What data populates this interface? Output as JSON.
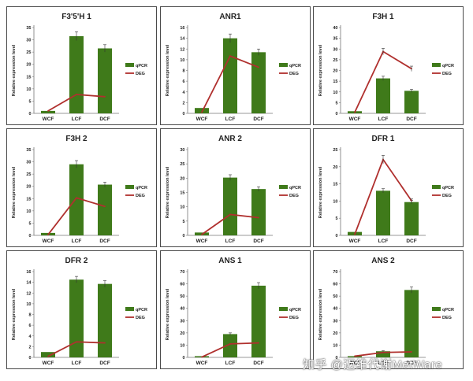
{
  "watermark": "知乎 @迈维代谢MetWare",
  "chart_data": [
    {
      "type": "bar",
      "title": "F3'5'H 1",
      "categories": [
        "WCF",
        "LCF",
        "DCF"
      ],
      "ylabel": "Relative expression level",
      "ylim": [
        0,
        35
      ],
      "yticks": [
        0,
        5,
        10,
        15,
        20,
        25,
        30,
        35
      ],
      "series": [
        {
          "name": "qPCR",
          "kind": "bar",
          "values": [
            1,
            31.5,
            26.5
          ],
          "errors": [
            0,
            1.8,
            1.5
          ]
        },
        {
          "name": "DEG",
          "kind": "line",
          "values": [
            1,
            7.7,
            6.8
          ]
        }
      ]
    },
    {
      "type": "bar",
      "title": "ANR1",
      "categories": [
        "WCF",
        "LCF",
        "DCF"
      ],
      "ylabel": "Relative expression level",
      "ylim": [
        0,
        16
      ],
      "yticks": [
        0,
        2,
        4,
        6,
        8,
        10,
        12,
        14,
        16
      ],
      "series": [
        {
          "name": "qPCR",
          "kind": "bar",
          "values": [
            1,
            14,
            11.4
          ],
          "errors": [
            0,
            0.8,
            0.6
          ]
        },
        {
          "name": "DEG",
          "kind": "line",
          "values": [
            0.2,
            10.7,
            8.6
          ]
        }
      ]
    },
    {
      "type": "bar",
      "title": "F3H 1",
      "categories": [
        "WCF",
        "LCF",
        "DCF"
      ],
      "ylabel": "Relative expression level",
      "ylim": [
        0,
        40
      ],
      "yticks": [
        0,
        5,
        10,
        15,
        20,
        25,
        30,
        35,
        40
      ],
      "series": [
        {
          "name": "qPCR",
          "kind": "bar",
          "values": [
            1,
            16.3,
            10.5
          ],
          "errors": [
            0,
            1.0,
            0.7
          ]
        },
        {
          "name": "DEG",
          "kind": "line",
          "values": [
            0.5,
            28.8,
            20.8
          ],
          "errors": [
            0,
            1.5,
            1.2
          ]
        }
      ]
    },
    {
      "type": "bar",
      "title": "F3H 2",
      "categories": [
        "WCF",
        "LCF",
        "DCF"
      ],
      "ylabel": "Relative expression level",
      "ylim": [
        0,
        35
      ],
      "yticks": [
        0,
        5,
        10,
        15,
        20,
        25,
        30,
        35
      ],
      "series": [
        {
          "name": "qPCR",
          "kind": "bar",
          "values": [
            1,
            29,
            20.7
          ],
          "errors": [
            0,
            1.5,
            1.0
          ]
        },
        {
          "name": "DEG",
          "kind": "line",
          "values": [
            0.3,
            15.3,
            11.8
          ]
        }
      ]
    },
    {
      "type": "bar",
      "title": "ANR 2",
      "categories": [
        "WCF",
        "LCF",
        "DCF"
      ],
      "ylabel": "Relative expression level",
      "ylim": [
        0,
        30
      ],
      "yticks": [
        0,
        5,
        10,
        15,
        20,
        25,
        30
      ],
      "series": [
        {
          "name": "qPCR",
          "kind": "bar",
          "values": [
            1,
            20.2,
            16.2
          ],
          "errors": [
            0,
            1.0,
            0.8
          ]
        },
        {
          "name": "DEG",
          "kind": "line",
          "values": [
            0.3,
            7.3,
            6.2
          ]
        }
      ]
    },
    {
      "type": "bar",
      "title": "DFR 1",
      "categories": [
        "WCF",
        "LCF",
        "DCF"
      ],
      "ylabel": "Relative expression level",
      "ylim": [
        0,
        25
      ],
      "yticks": [
        0,
        5,
        10,
        15,
        20,
        25
      ],
      "series": [
        {
          "name": "qPCR",
          "kind": "bar",
          "values": [
            1,
            13,
            9.7
          ],
          "errors": [
            0,
            0.6,
            0.5
          ]
        },
        {
          "name": "DEG",
          "kind": "line",
          "values": [
            0.3,
            22.1,
            10.1
          ],
          "errors": [
            0,
            1.2,
            0.5
          ]
        }
      ]
    },
    {
      "type": "bar",
      "title": "DFR 2",
      "categories": [
        "WCF",
        "LCF",
        "DCF"
      ],
      "ylabel": "Relative expression level",
      "ylim": [
        0,
        16
      ],
      "yticks": [
        0,
        2,
        4,
        6,
        8,
        10,
        12,
        14,
        16
      ],
      "series": [
        {
          "name": "qPCR",
          "kind": "bar",
          "values": [
            1,
            14.5,
            13.7
          ],
          "errors": [
            0,
            0.6,
            0.6
          ]
        },
        {
          "name": "DEG",
          "kind": "line",
          "values": [
            0.2,
            2.9,
            2.7
          ]
        }
      ]
    },
    {
      "type": "bar",
      "title": "ANS 1",
      "categories": [
        "WCF",
        "LCF",
        "DCF"
      ],
      "ylabel": "Relative expression level",
      "ylim": [
        0,
        70
      ],
      "yticks": [
        0,
        10,
        20,
        30,
        40,
        50,
        60,
        70
      ],
      "series": [
        {
          "name": "qPCR",
          "kind": "bar",
          "values": [
            1,
            19,
            58.5
          ],
          "errors": [
            0,
            1.0,
            2.5
          ]
        },
        {
          "name": "DEG",
          "kind": "line",
          "values": [
            0.3,
            11,
            11.8
          ]
        }
      ]
    },
    {
      "type": "bar",
      "title": "ANS 2",
      "categories": [
        "WCF",
        "LCF",
        "DCF"
      ],
      "ylabel": "Relative expression level",
      "ylim": [
        0,
        70
      ],
      "yticks": [
        0,
        10,
        20,
        30,
        40,
        50,
        60,
        70
      ],
      "series": [
        {
          "name": "qPCR",
          "kind": "bar",
          "values": [
            1,
            5,
            55
          ],
          "errors": [
            0,
            0.5,
            2.5
          ]
        },
        {
          "name": "DEG",
          "kind": "line",
          "values": [
            1,
            4,
            4.5
          ]
        }
      ]
    }
  ]
}
